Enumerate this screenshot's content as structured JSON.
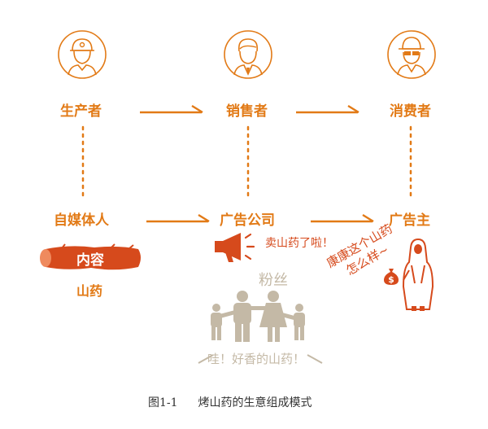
{
  "colors": {
    "orange": "#e27a16",
    "red": "#d64a1c",
    "grey": "#c4b9a6",
    "caption": "#333333"
  },
  "roles": {
    "producer": "生产者",
    "seller": "销售者",
    "consumer": "消费者"
  },
  "actors": {
    "media": "自媒体人",
    "agency": "广告公司",
    "advertiser": "广告主"
  },
  "content_badge": "内容",
  "product": "山药",
  "megaphone_text": "卖山药了啦！",
  "fans_label": "粉丝",
  "fans_speech": "哇！好香的山药！",
  "advertiser_speech_line1": "康康这个山药",
  "advertiser_speech_line2": "怎么样~",
  "figure_number": "图1-1",
  "caption": "烤山药的生意组成模式",
  "icons": [
    "worker-icon",
    "businessman-icon",
    "consumer-icon",
    "yam-icon",
    "megaphone-icon",
    "family-icon",
    "advertiser-person-icon",
    "dollar-bag-icon"
  ]
}
